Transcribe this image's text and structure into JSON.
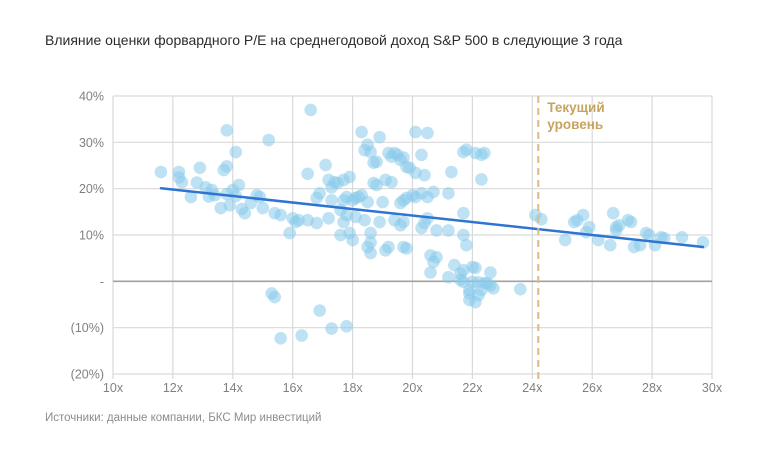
{
  "title": "Влияние оценки форвардного P/E на среднегодовой доход S&P 500 в следующие 3 года",
  "source": "Источники: данные компании, БКС Мир инвестиций",
  "colors": {
    "point": "rgba(137,202,235,0.55)",
    "trend": "#2e75d3",
    "current_line": "#d9bd84",
    "current_label": "#c6a45f",
    "gridline": "#d9d9d9",
    "zero_line": "#a1a1a1",
    "tick_text": "#808080",
    "title_text": "#2b2b2b",
    "source_text": "#8c8c8c"
  },
  "chart_data": {
    "type": "scatter",
    "title": "Влияние оценки форвардного P/E на среднегодовой доход S&P 500 в следующие 3 года",
    "xlabel": "",
    "ylabel": "",
    "xlim": [
      10,
      30
    ],
    "ylim": [
      -20,
      40
    ],
    "grid": true,
    "legend": false,
    "x_ticks": [
      {
        "label": "10x",
        "value": 10
      },
      {
        "label": "12x",
        "value": 12
      },
      {
        "label": "14x",
        "value": 14
      },
      {
        "label": "16x",
        "value": 16
      },
      {
        "label": "18x",
        "value": 18
      },
      {
        "label": "20x",
        "value": 20
      },
      {
        "label": "22x",
        "value": 22
      },
      {
        "label": "24x",
        "value": 24
      },
      {
        "label": "26x",
        "value": 26
      },
      {
        "label": "28x",
        "value": 28
      },
      {
        "label": "30x",
        "value": 30
      }
    ],
    "y_ticks": [
      {
        "label": "40%",
        "value": 40
      },
      {
        "label": "30%",
        "value": 30
      },
      {
        "label": "20%",
        "value": 20
      },
      {
        "label": "10%",
        "value": 10
      },
      {
        "label": "-",
        "value": 0
      },
      {
        "label": "(10%)",
        "value": -10
      },
      {
        "label": "(20%)",
        "value": -20
      }
    ],
    "points": [
      [
        11.6,
        23.6
      ],
      [
        12.2,
        23.6
      ],
      [
        12.2,
        22.4
      ],
      [
        12.3,
        21.4
      ],
      [
        12.6,
        18.2
      ],
      [
        12.8,
        21.3
      ],
      [
        12.9,
        24.5
      ],
      [
        13.1,
        20.3
      ],
      [
        13.2,
        18.3
      ],
      [
        13.3,
        19.7
      ],
      [
        13.4,
        18.6
      ],
      [
        13.6,
        15.8
      ],
      [
        13.7,
        24.0
      ],
      [
        13.8,
        24.8
      ],
      [
        13.8,
        32.6
      ],
      [
        13.8,
        18.8
      ],
      [
        13.9,
        16.4
      ],
      [
        14.0,
        19.7
      ],
      [
        14.1,
        27.9
      ],
      [
        14.1,
        18.4
      ],
      [
        14.2,
        20.8
      ],
      [
        14.3,
        15.6
      ],
      [
        14.4,
        14.7
      ],
      [
        14.6,
        16.9
      ],
      [
        14.8,
        18.6
      ],
      [
        14.9,
        18.2
      ],
      [
        15.0,
        15.8
      ],
      [
        15.2,
        30.5
      ],
      [
        15.3,
        -2.6
      ],
      [
        15.4,
        14.7
      ],
      [
        15.4,
        -3.4
      ],
      [
        15.6,
        14.3
      ],
      [
        15.6,
        -12.3
      ],
      [
        15.9,
        10.4
      ],
      [
        16.0,
        13.6
      ],
      [
        16.1,
        12.8
      ],
      [
        16.2,
        13.2
      ],
      [
        16.3,
        -11.7
      ],
      [
        16.5,
        23.2
      ],
      [
        16.5,
        13.2
      ],
      [
        16.6,
        37.0
      ],
      [
        16.8,
        18.0
      ],
      [
        16.8,
        12.6
      ],
      [
        16.9,
        19.0
      ],
      [
        16.9,
        -6.3
      ],
      [
        17.1,
        25.1
      ],
      [
        17.2,
        21.9
      ],
      [
        17.2,
        13.6
      ],
      [
        17.3,
        20.3
      ],
      [
        17.3,
        17.5
      ],
      [
        17.3,
        -10.2
      ],
      [
        17.4,
        21.4
      ],
      [
        17.5,
        21.2
      ],
      [
        17.6,
        15.4
      ],
      [
        17.6,
        10.0
      ],
      [
        17.7,
        21.9
      ],
      [
        17.7,
        17.5
      ],
      [
        17.7,
        12.8
      ],
      [
        17.8,
        18.2
      ],
      [
        17.8,
        14.3
      ],
      [
        17.8,
        -9.7
      ],
      [
        17.9,
        22.5
      ],
      [
        17.9,
        10.4
      ],
      [
        18.0,
        17.5
      ],
      [
        18.0,
        8.9
      ],
      [
        18.1,
        18.0
      ],
      [
        18.1,
        13.9
      ],
      [
        18.2,
        18.2
      ],
      [
        18.3,
        32.2
      ],
      [
        18.3,
        18.6
      ],
      [
        18.4,
        28.3
      ],
      [
        18.4,
        13.2
      ],
      [
        18.5,
        29.5
      ],
      [
        18.5,
        17.1
      ],
      [
        18.5,
        7.4
      ],
      [
        18.6,
        27.9
      ],
      [
        18.6,
        10.4
      ],
      [
        18.6,
        8.4
      ],
      [
        18.6,
        6.1
      ],
      [
        18.7,
        25.6
      ],
      [
        18.7,
        21.2
      ],
      [
        18.8,
        25.8
      ],
      [
        18.8,
        20.8
      ],
      [
        18.9,
        31.1
      ],
      [
        18.9,
        12.8
      ],
      [
        19.0,
        17.1
      ],
      [
        19.1,
        21.9
      ],
      [
        19.1,
        6.7
      ],
      [
        19.2,
        27.7
      ],
      [
        19.2,
        7.4
      ],
      [
        19.3,
        26.9
      ],
      [
        19.3,
        21.4
      ],
      [
        19.4,
        27.7
      ],
      [
        19.4,
        13.2
      ],
      [
        19.5,
        27.3
      ],
      [
        19.6,
        26.2
      ],
      [
        19.6,
        16.9
      ],
      [
        19.6,
        12.1
      ],
      [
        19.7,
        26.7
      ],
      [
        19.7,
        17.5
      ],
      [
        19.7,
        12.8
      ],
      [
        19.7,
        7.4
      ],
      [
        19.8,
        24.7
      ],
      [
        19.8,
        18.0
      ],
      [
        19.8,
        7.1
      ],
      [
        19.9,
        24.5
      ],
      [
        20.0,
        18.6
      ],
      [
        20.1,
        32.2
      ],
      [
        20.1,
        23.4
      ],
      [
        20.1,
        18.2
      ],
      [
        20.3,
        27.3
      ],
      [
        20.3,
        19.0
      ],
      [
        20.3,
        11.5
      ],
      [
        20.4,
        22.9
      ],
      [
        20.4,
        12.6
      ],
      [
        20.5,
        32.0
      ],
      [
        20.5,
        18.2
      ],
      [
        20.5,
        13.6
      ],
      [
        20.6,
        5.6
      ],
      [
        20.6,
        1.9
      ],
      [
        20.7,
        19.3
      ],
      [
        20.7,
        4.2
      ],
      [
        20.8,
        11.0
      ],
      [
        20.8,
        5.2
      ],
      [
        21.2,
        19.0
      ],
      [
        21.2,
        11.0
      ],
      [
        21.2,
        0.9
      ],
      [
        21.3,
        23.6
      ],
      [
        21.4,
        3.5
      ],
      [
        21.6,
        0.3
      ],
      [
        21.6,
        1.7
      ],
      [
        21.7,
        27.9
      ],
      [
        21.7,
        14.7
      ],
      [
        21.7,
        10.0
      ],
      [
        21.7,
        2.4
      ],
      [
        21.7,
        -0.1
      ],
      [
        21.8,
        28.4
      ],
      [
        21.8,
        7.8
      ],
      [
        21.9,
        -1.9
      ],
      [
        21.9,
        -2.6
      ],
      [
        21.9,
        -4.0
      ],
      [
        22.0,
        3.1
      ],
      [
        22.0,
        -0.1
      ],
      [
        22.1,
        2.9
      ],
      [
        22.1,
        -4.5
      ],
      [
        22.1,
        27.7
      ],
      [
        22.2,
        -0.2
      ],
      [
        22.2,
        -3.0
      ],
      [
        22.3,
        27.3
      ],
      [
        22.3,
        22.0
      ],
      [
        22.3,
        -1.9
      ],
      [
        22.4,
        27.7
      ],
      [
        22.4,
        -0.4
      ],
      [
        22.5,
        -0.4
      ],
      [
        22.6,
        1.9
      ],
      [
        22.6,
        -0.9
      ],
      [
        22.7,
        -1.5
      ],
      [
        23.6,
        -1.7
      ],
      [
        24.1,
        14.3
      ],
      [
        24.3,
        13.4
      ],
      [
        25.1,
        8.9
      ],
      [
        25.4,
        12.8
      ],
      [
        25.5,
        13.2
      ],
      [
        25.7,
        14.3
      ],
      [
        25.8,
        10.6
      ],
      [
        25.9,
        11.7
      ],
      [
        26.2,
        8.9
      ],
      [
        26.6,
        7.8
      ],
      [
        26.7,
        14.7
      ],
      [
        26.8,
        11.7
      ],
      [
        26.8,
        11.0
      ],
      [
        26.9,
        12.1
      ],
      [
        27.2,
        13.2
      ],
      [
        27.3,
        12.8
      ],
      [
        27.4,
        7.4
      ],
      [
        27.6,
        7.8
      ],
      [
        27.8,
        10.4
      ],
      [
        27.9,
        10.0
      ],
      [
        28.1,
        7.8
      ],
      [
        28.3,
        9.5
      ],
      [
        28.4,
        9.3
      ],
      [
        29.0,
        9.5
      ],
      [
        29.7,
        8.4
      ]
    ],
    "trendline": {
      "x1": 11.6,
      "y1": 20.1,
      "x2": 29.7,
      "y2": 7.4
    },
    "current_level": {
      "x": 24.2,
      "label": "Текущий уровень",
      "label_line1": "Текущий",
      "label_line2": "уровень"
    }
  }
}
